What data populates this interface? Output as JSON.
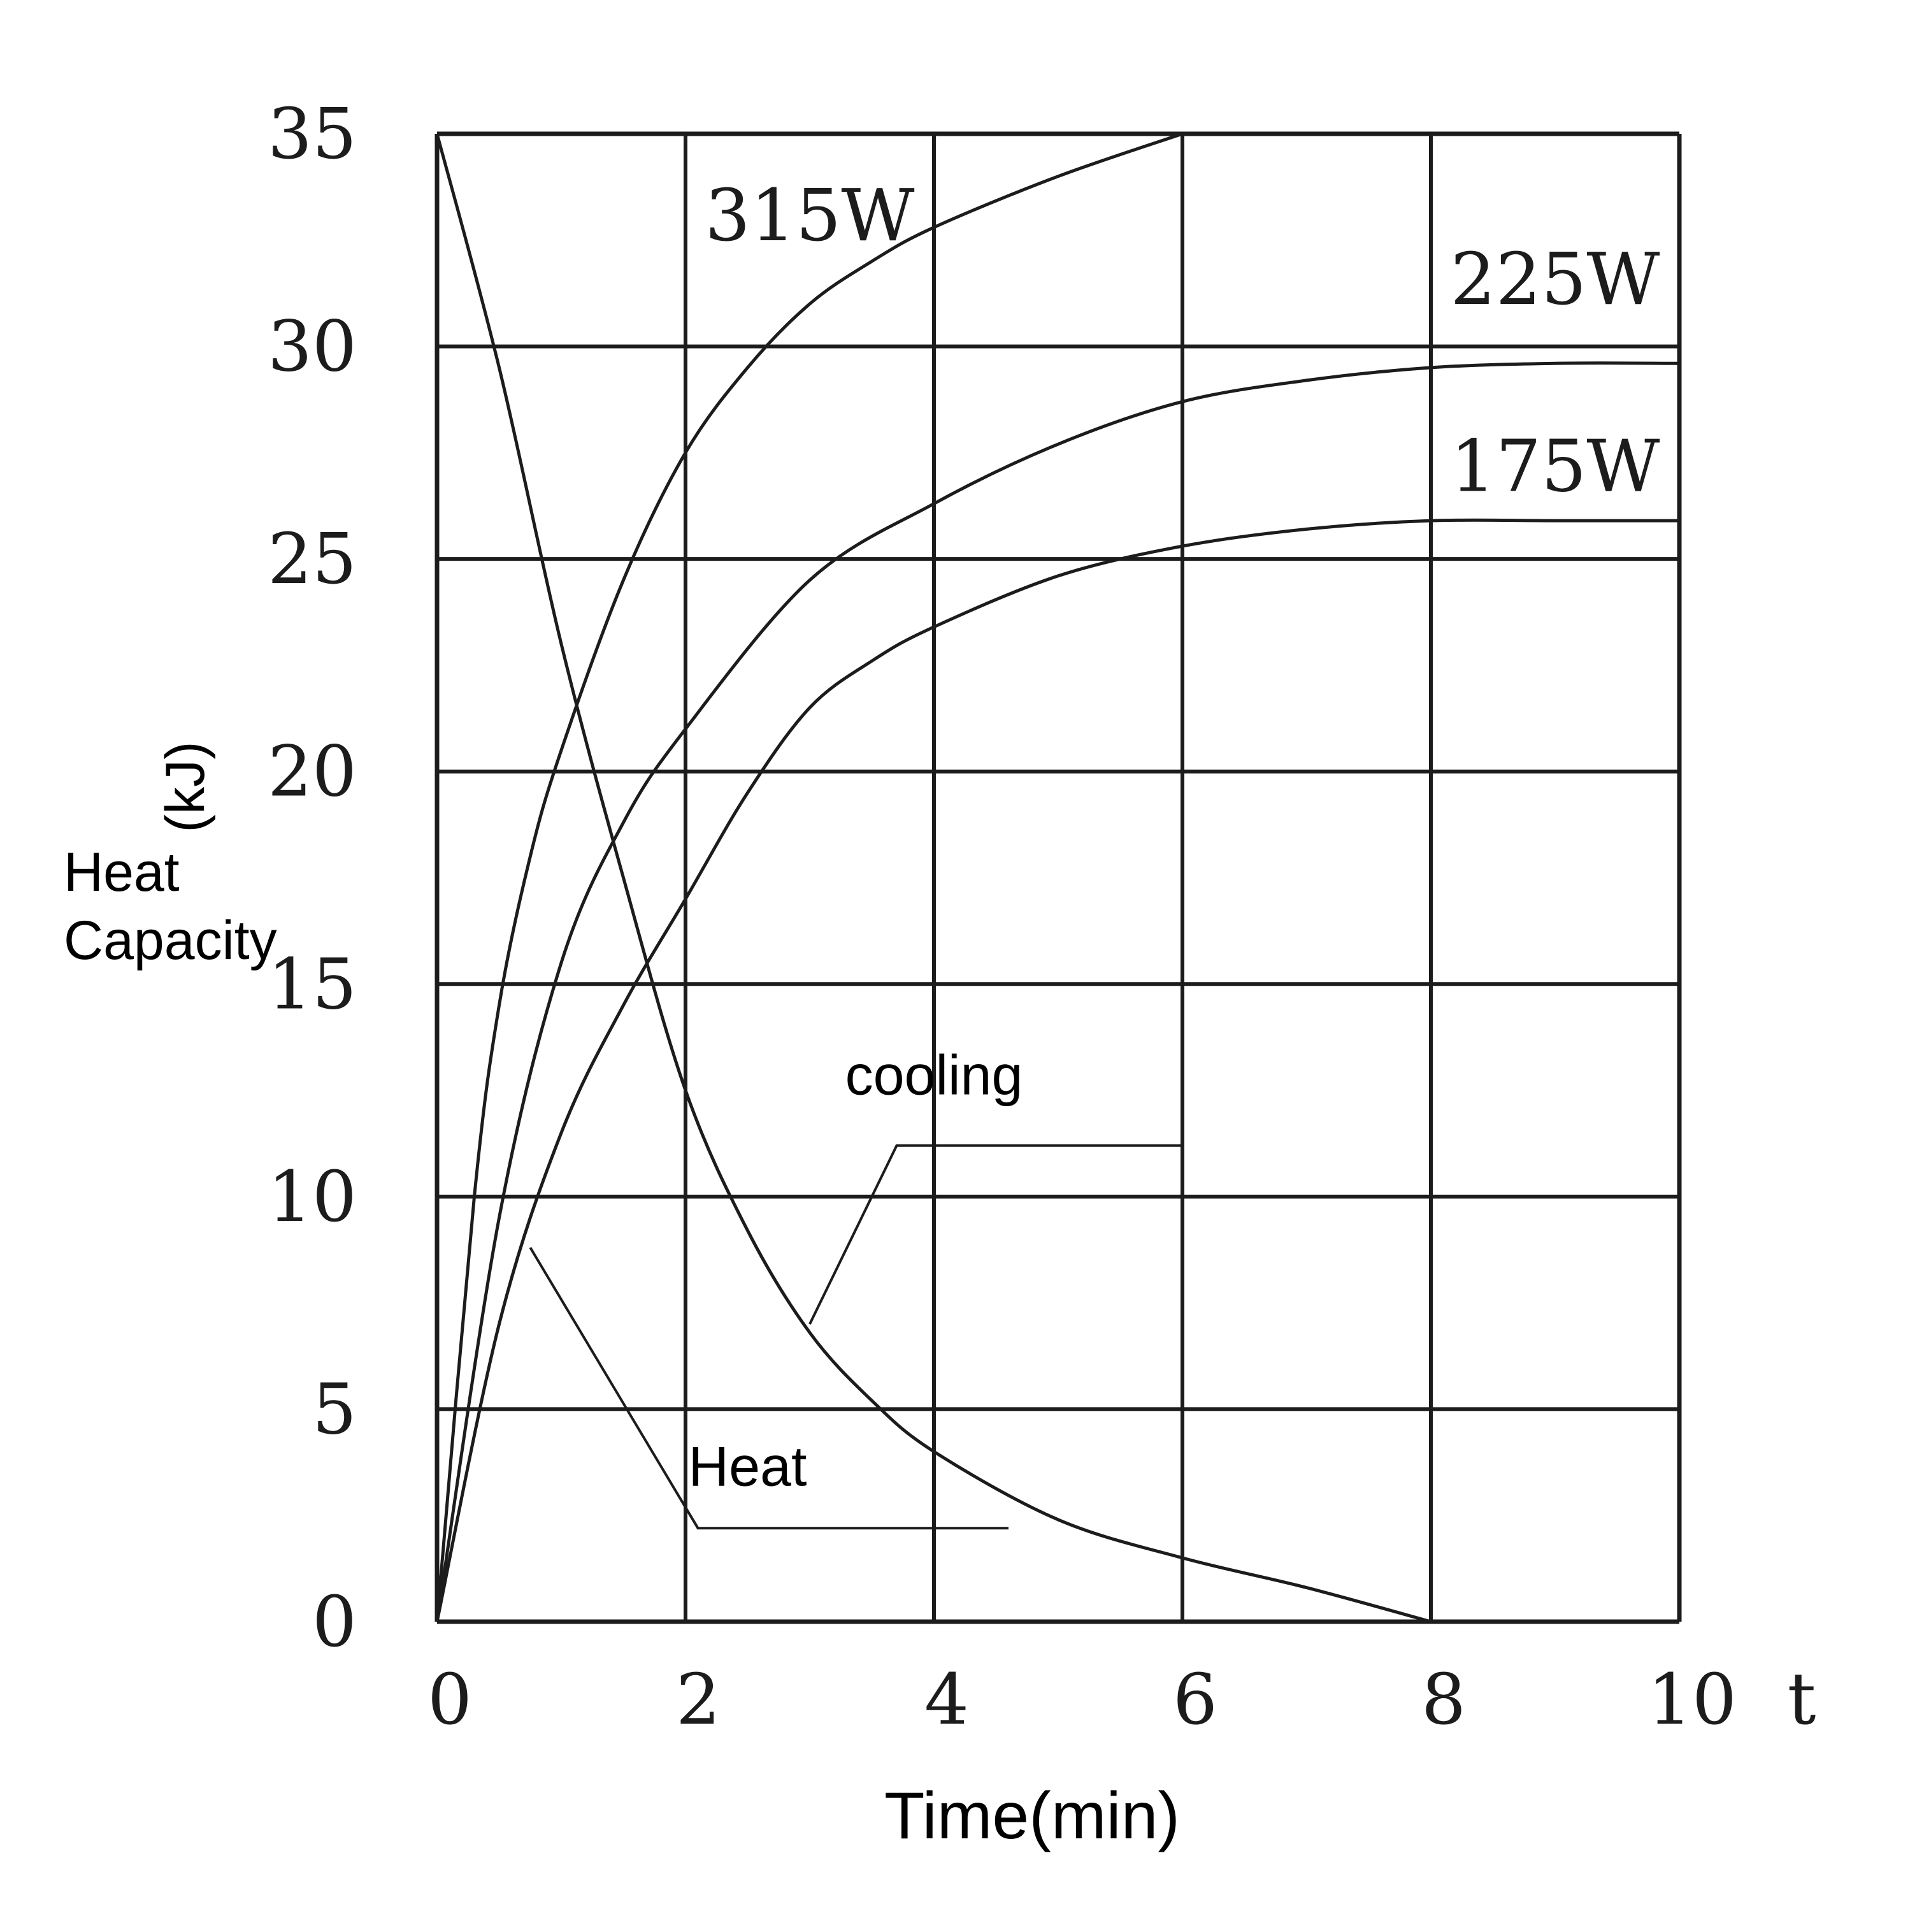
{
  "chart_data": {
    "type": "line",
    "xlabel": "Time(min)",
    "x_axis_var": "t",
    "ylabel_lines": [
      "Heat",
      "Capacity"
    ],
    "ylabel_unit": "(kJ)",
    "xlim": [
      0,
      10
    ],
    "ylim": [
      0,
      35
    ],
    "xticks": [
      0,
      2,
      4,
      6,
      8,
      10
    ],
    "yticks": [
      0,
      5,
      10,
      15,
      20,
      25,
      30,
      35
    ],
    "grid": true,
    "series": [
      {
        "name": "315W",
        "x": [
          0,
          0.3,
          0.5,
          0.75,
          1.0,
          1.5,
          2.0,
          2.5,
          3.0,
          3.5,
          4.0,
          5.0,
          6.0
        ],
        "y": [
          0,
          10.0,
          14.5,
          18.0,
          20.5,
          24.5,
          27.5,
          29.5,
          31.0,
          32.0,
          32.8,
          34.0,
          35.0
        ]
      },
      {
        "name": "225W",
        "x": [
          0,
          0.5,
          1.0,
          1.5,
          2.0,
          3.0,
          4.0,
          5.0,
          6.0,
          7.0,
          8.0,
          9.0,
          10.0
        ],
        "y": [
          0,
          9.5,
          15.5,
          18.8,
          21.0,
          24.5,
          26.3,
          27.7,
          28.7,
          29.2,
          29.5,
          29.6,
          29.6
        ]
      },
      {
        "name": "175W",
        "x": [
          0,
          0.5,
          1.0,
          1.5,
          2.0,
          2.5,
          3.0,
          3.5,
          4.0,
          5.0,
          6.0,
          7.0,
          8.0,
          9.0,
          10.0
        ],
        "y": [
          0,
          7.0,
          11.5,
          14.5,
          17.0,
          19.5,
          21.5,
          22.6,
          23.4,
          24.6,
          25.3,
          25.7,
          25.9,
          25.9,
          25.9
        ]
      },
      {
        "name": "cooling",
        "x": [
          0,
          0.5,
          1.0,
          1.5,
          2.0,
          2.5,
          3.0,
          3.5,
          4.0,
          5.0,
          6.0,
          7.0,
          8.0
        ],
        "y": [
          35,
          29.5,
          23.0,
          17.5,
          12.5,
          9.2,
          6.8,
          5.2,
          4.0,
          2.4,
          1.5,
          0.8,
          0
        ]
      }
    ],
    "annotations": [
      {
        "text": "315W",
        "x": 3.0,
        "y": 32.5
      },
      {
        "text": "225W",
        "x": 9.0,
        "y": 31.0
      },
      {
        "text": "175W",
        "x": 9.0,
        "y": 26.6
      },
      {
        "text": "cooling",
        "x": 4.0,
        "y": 12.4,
        "leader": [
          [
            6.0,
            11.2
          ],
          [
            3.7,
            11.2
          ],
          [
            3.0,
            7.0
          ]
        ]
      },
      {
        "text": "Heat",
        "x": 2.5,
        "y": 3.2,
        "leader": [
          [
            4.6,
            2.2
          ],
          [
            2.1,
            2.2
          ],
          [
            0.75,
            8.8
          ]
        ]
      }
    ]
  }
}
